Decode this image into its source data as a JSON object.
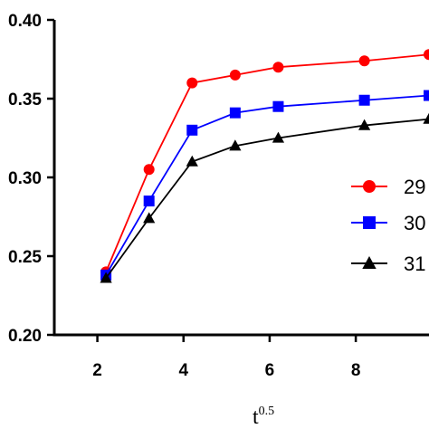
{
  "chart_data": {
    "type": "line",
    "title": "",
    "xlabel": "t",
    "xlabel_superscript": "0.5",
    "ylabel": "",
    "xlim": [
      1.0,
      9.7
    ],
    "ylim": [
      0.2,
      0.4
    ],
    "x_ticks": [
      2,
      4,
      6,
      8
    ],
    "x_tick_labels": [
      "2",
      "4",
      "6",
      "8"
    ],
    "y_ticks": [
      0.2,
      0.25,
      0.3,
      0.35,
      0.4
    ],
    "y_tick_labels": [
      "0.20",
      "0.25",
      "0.30",
      "0.35",
      "0.40"
    ],
    "grid": false,
    "legend_position": "right",
    "series": [
      {
        "name": "29",
        "color": "#ff0000",
        "marker": "circle",
        "x": [
          2.2,
          3.2,
          4.2,
          5.2,
          6.2,
          8.2,
          9.7
        ],
        "y": [
          0.24,
          0.305,
          0.36,
          0.365,
          0.37,
          0.374,
          0.378
        ]
      },
      {
        "name": "30",
        "color": "#0000ff",
        "marker": "square",
        "x": [
          2.2,
          3.2,
          4.2,
          5.2,
          6.2,
          8.2,
          9.7
        ],
        "y": [
          0.238,
          0.285,
          0.33,
          0.341,
          0.345,
          0.349,
          0.352
        ]
      },
      {
        "name": "31",
        "color": "#000000",
        "marker": "triangle",
        "x": [
          2.2,
          3.2,
          4.2,
          5.2,
          6.2,
          8.2,
          9.7
        ],
        "y": [
          0.236,
          0.274,
          0.31,
          0.32,
          0.325,
          0.333,
          0.337
        ]
      }
    ]
  }
}
